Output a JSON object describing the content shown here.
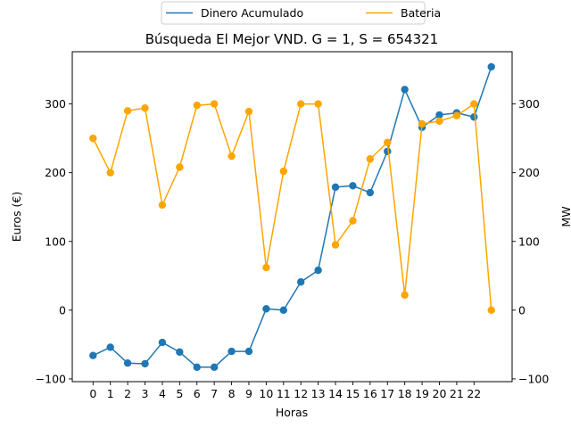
{
  "chart_data": {
    "type": "line",
    "title": "Búsqueda El Mejor VND. G = 1, S = 654321",
    "xlabel": "Horas",
    "ylabel_left": "Euros (€)",
    "ylabel_right": "MW",
    "x_ticks": [
      "0",
      "1",
      "2",
      "3",
      "4",
      "5",
      "6",
      "7",
      "8",
      "9",
      "10",
      "11",
      "12",
      "13",
      "14",
      "15",
      "16",
      "17",
      "18",
      "19",
      "20",
      "21",
      "22"
    ],
    "x": [
      0,
      1,
      2,
      3,
      4,
      5,
      6,
      7,
      8,
      9,
      10,
      11,
      12,
      13,
      14,
      15,
      16,
      17,
      18,
      19,
      20,
      21,
      22,
      23
    ],
    "xlim": [
      -1.2,
      24.2
    ],
    "ylim_left": [
      -104,
      376
    ],
    "ylim_right": [
      -104,
      376
    ],
    "y_ticks_left": [
      -100,
      0,
      100,
      200,
      300
    ],
    "y_ticks_right": [
      -100,
      0,
      100,
      200,
      300
    ],
    "grid": false,
    "legend_placement": "top-center, above plot",
    "series": [
      {
        "name": "Dinero Acumulado",
        "axis": "left",
        "color": "#1f77b4",
        "values": [
          -66,
          -54,
          -77,
          -78,
          -47,
          -61,
          -83,
          -83,
          -60,
          -60,
          2,
          0,
          41,
          58,
          179,
          181,
          171,
          231,
          321,
          266,
          284,
          287,
          281,
          354
        ]
      },
      {
        "name": "Bateria",
        "axis": "right",
        "color": "#ffa500",
        "values": [
          250,
          200,
          290,
          294,
          153,
          208,
          298,
          300,
          224,
          289,
          62,
          202,
          300,
          300,
          95,
          130,
          220,
          244,
          22,
          271,
          275,
          283,
          300,
          0
        ]
      }
    ]
  }
}
